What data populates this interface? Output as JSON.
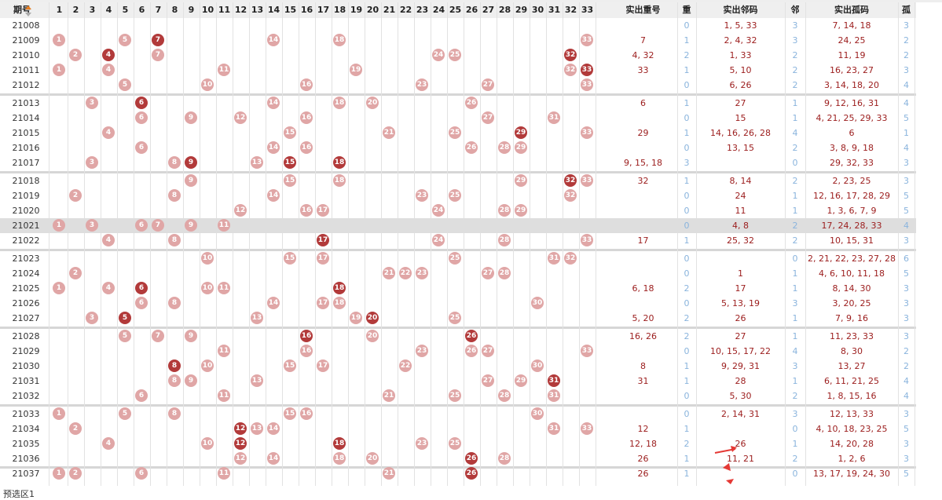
{
  "header": {
    "issue_label": "期号",
    "numbers": [
      "1",
      "2",
      "3",
      "4",
      "5",
      "6",
      "7",
      "8",
      "9",
      "10",
      "11",
      "12",
      "13",
      "14",
      "15",
      "16",
      "17",
      "18",
      "19",
      "20",
      "21",
      "22",
      "23",
      "24",
      "25",
      "26",
      "27",
      "28",
      "29",
      "30",
      "31",
      "32",
      "33"
    ],
    "repeat_label": "实出重号",
    "repeat_count_label": "重",
    "neighbor_label": "实出邻码",
    "neighbor_count_label": "邻",
    "isolated_label": "实出孤码",
    "isolated_count_label": "孤"
  },
  "colors": {
    "light_ball": "#e0a6a6",
    "dark_ball": "#b23a3a",
    "value_text": "#9b1c1c",
    "count_text": "#8ab4dd",
    "highlight_row": "#dedede"
  },
  "chart_data": {
    "type": "table",
    "rows": [
      {
        "issue": "21008",
        "light": [],
        "dark": [],
        "repeat": "",
        "rc": "0",
        "neighbor": "1, 5, 33",
        "nc": "3",
        "isolated": "7, 14, 18",
        "ic": "3"
      },
      {
        "issue": "21009",
        "light": [
          1,
          5,
          14,
          18,
          33
        ],
        "dark": [
          7
        ],
        "repeat": "7",
        "rc": "1",
        "neighbor": "2, 4, 32",
        "nc": "3",
        "isolated": "24, 25",
        "ic": "2"
      },
      {
        "issue": "21010",
        "light": [
          2,
          7,
          24,
          25
        ],
        "dark": [
          4,
          32
        ],
        "repeat": "4, 32",
        "rc": "2",
        "neighbor": "1, 33",
        "nc": "2",
        "isolated": "11, 19",
        "ic": "2"
      },
      {
        "issue": "21011",
        "light": [
          1,
          4,
          11,
          19,
          32
        ],
        "dark": [
          33
        ],
        "repeat": "33",
        "rc": "1",
        "neighbor": "5, 10",
        "nc": "2",
        "isolated": "16, 23, 27",
        "ic": "3"
      },
      {
        "issue": "21012",
        "light": [
          5,
          10,
          16,
          23,
          27,
          33
        ],
        "dark": [],
        "repeat": "",
        "rc": "0",
        "neighbor": "6, 26",
        "nc": "2",
        "isolated": "3, 14, 18, 20",
        "ic": "4"
      },
      {
        "issue": "21013",
        "light": [
          3,
          14,
          18,
          20,
          26
        ],
        "dark": [
          6
        ],
        "repeat": "6",
        "rc": "1",
        "neighbor": "27",
        "nc": "1",
        "isolated": "9, 12, 16, 31",
        "ic": "4"
      },
      {
        "issue": "21014",
        "light": [
          6,
          9,
          12,
          16,
          27,
          31
        ],
        "dark": [],
        "repeat": "",
        "rc": "0",
        "neighbor": "15",
        "nc": "1",
        "isolated": "4, 21, 25, 29, 33",
        "ic": "5"
      },
      {
        "issue": "21015",
        "light": [
          4,
          15,
          21,
          25,
          33
        ],
        "dark": [
          29
        ],
        "repeat": "29",
        "rc": "1",
        "neighbor": "14, 16, 26, 28",
        "nc": "4",
        "isolated": "6",
        "ic": "1"
      },
      {
        "issue": "21016",
        "light": [
          6,
          14,
          16,
          26,
          28,
          29
        ],
        "dark": [],
        "repeat": "",
        "rc": "0",
        "neighbor": "13, 15",
        "nc": "2",
        "isolated": "3, 8, 9, 18",
        "ic": "4"
      },
      {
        "issue": "21017",
        "light": [
          3,
          8,
          13
        ],
        "dark": [
          9,
          15,
          18
        ],
        "repeat": "9, 15, 18",
        "rc": "3",
        "neighbor": "",
        "nc": "0",
        "isolated": "29, 32, 33",
        "ic": "3"
      },
      {
        "issue": "21018",
        "light": [
          9,
          15,
          18,
          29,
          33
        ],
        "dark": [
          32
        ],
        "repeat": "32",
        "rc": "1",
        "neighbor": "8, 14",
        "nc": "2",
        "isolated": "2, 23, 25",
        "ic": "3"
      },
      {
        "issue": "21019",
        "light": [
          2,
          8,
          14,
          23,
          25,
          32
        ],
        "dark": [],
        "repeat": "",
        "rc": "0",
        "neighbor": "24",
        "nc": "1",
        "isolated": "12, 16, 17, 28, 29",
        "ic": "5"
      },
      {
        "issue": "21020",
        "light": [
          12,
          16,
          17,
          24,
          28,
          29
        ],
        "dark": [],
        "repeat": "",
        "rc": "0",
        "neighbor": "11",
        "nc": "1",
        "isolated": "1, 3, 6, 7, 9",
        "ic": "5"
      },
      {
        "issue": "21021",
        "light": [
          1,
          3,
          6,
          7,
          9,
          11
        ],
        "dark": [],
        "repeat": "",
        "rc": "0",
        "neighbor": "4, 8",
        "nc": "2",
        "isolated": "17, 24, 28, 33",
        "ic": "4",
        "highlight": true
      },
      {
        "issue": "21022",
        "light": [
          4,
          8,
          24,
          28,
          33
        ],
        "dark": [
          17
        ],
        "repeat": "17",
        "rc": "1",
        "neighbor": "25, 32",
        "nc": "2",
        "isolated": "10, 15, 31",
        "ic": "3"
      },
      {
        "issue": "21023",
        "light": [
          10,
          15,
          17,
          25,
          31,
          32
        ],
        "dark": [],
        "repeat": "",
        "rc": "0",
        "neighbor": "",
        "nc": "0",
        "isolated": "2, 21, 22, 23, 27, 28",
        "ic": "6"
      },
      {
        "issue": "21024",
        "light": [
          2,
          21,
          22,
          23,
          27,
          28
        ],
        "dark": [],
        "repeat": "",
        "rc": "0",
        "neighbor": "1",
        "nc": "1",
        "isolated": "4, 6, 10, 11, 18",
        "ic": "5"
      },
      {
        "issue": "21025",
        "light": [
          1,
          4,
          10,
          11
        ],
        "dark": [
          6,
          18
        ],
        "repeat": "6, 18",
        "rc": "2",
        "neighbor": "17",
        "nc": "1",
        "isolated": "8, 14, 30",
        "ic": "3"
      },
      {
        "issue": "21026",
        "light": [
          6,
          8,
          14,
          17,
          18,
          30
        ],
        "dark": [],
        "repeat": "",
        "rc": "0",
        "neighbor": "5, 13, 19",
        "nc": "3",
        "isolated": "3, 20, 25",
        "ic": "3"
      },
      {
        "issue": "21027",
        "light": [
          3,
          13,
          19,
          25
        ],
        "dark": [
          5,
          20
        ],
        "repeat": "5, 20",
        "rc": "2",
        "neighbor": "26",
        "nc": "1",
        "isolated": "7, 9, 16",
        "ic": "3"
      },
      {
        "issue": "21028",
        "light": [
          5,
          7,
          9,
          20
        ],
        "dark": [
          16,
          26
        ],
        "repeat": "16, 26",
        "rc": "2",
        "neighbor": "27",
        "nc": "1",
        "isolated": "11, 23, 33",
        "ic": "3"
      },
      {
        "issue": "21029",
        "light": [
          11,
          16,
          23,
          26,
          27,
          33
        ],
        "dark": [],
        "repeat": "",
        "rc": "0",
        "neighbor": "10, 15, 17, 22",
        "nc": "4",
        "isolated": "8, 30",
        "ic": "2"
      },
      {
        "issue": "21030",
        "light": [
          10,
          15,
          17,
          22,
          30
        ],
        "dark": [
          8
        ],
        "repeat": "8",
        "rc": "1",
        "neighbor": "9, 29, 31",
        "nc": "3",
        "isolated": "13, 27",
        "ic": "2"
      },
      {
        "issue": "21031",
        "light": [
          8,
          9,
          13,
          27,
          29
        ],
        "dark": [
          31
        ],
        "repeat": "31",
        "rc": "1",
        "neighbor": "28",
        "nc": "1",
        "isolated": "6, 11, 21, 25",
        "ic": "4"
      },
      {
        "issue": "21032",
        "light": [
          6,
          11,
          21,
          25,
          28,
          31
        ],
        "dark": [],
        "repeat": "",
        "rc": "0",
        "neighbor": "5, 30",
        "nc": "2",
        "isolated": "1, 8, 15, 16",
        "ic": "4"
      },
      {
        "issue": "21033",
        "light": [
          1,
          5,
          8,
          15,
          16,
          30
        ],
        "dark": [],
        "repeat": "",
        "rc": "0",
        "neighbor": "2, 14, 31",
        "nc": "3",
        "isolated": "12, 13, 33",
        "ic": "3"
      },
      {
        "issue": "21034",
        "light": [
          2,
          13,
          14,
          31,
          33
        ],
        "dark": [
          12
        ],
        "repeat": "12",
        "rc": "1",
        "neighbor": "",
        "nc": "0",
        "isolated": "4, 10, 18, 23, 25",
        "ic": "5"
      },
      {
        "issue": "21035",
        "light": [
          4,
          10,
          23,
          25
        ],
        "dark": [
          12,
          18
        ],
        "repeat": "12, 18",
        "rc": "2",
        "neighbor": "26",
        "nc": "1",
        "isolated": "14, 20, 28",
        "ic": "3"
      },
      {
        "issue": "21036",
        "light": [
          12,
          14,
          18,
          20,
          28
        ],
        "dark": [
          26
        ],
        "repeat": "26",
        "rc": "1",
        "neighbor": "11, 21",
        "nc": "2",
        "isolated": "1, 2, 6",
        "ic": "3"
      },
      {
        "issue": "21037",
        "light": [
          1,
          2,
          6,
          11,
          21
        ],
        "dark": [
          26
        ],
        "repeat": "26",
        "rc": "1",
        "neighbor": "",
        "nc": "0",
        "isolated": "13, 17, 19, 24, 30",
        "ic": "5"
      }
    ]
  },
  "footer": {
    "label": "预选区1"
  }
}
